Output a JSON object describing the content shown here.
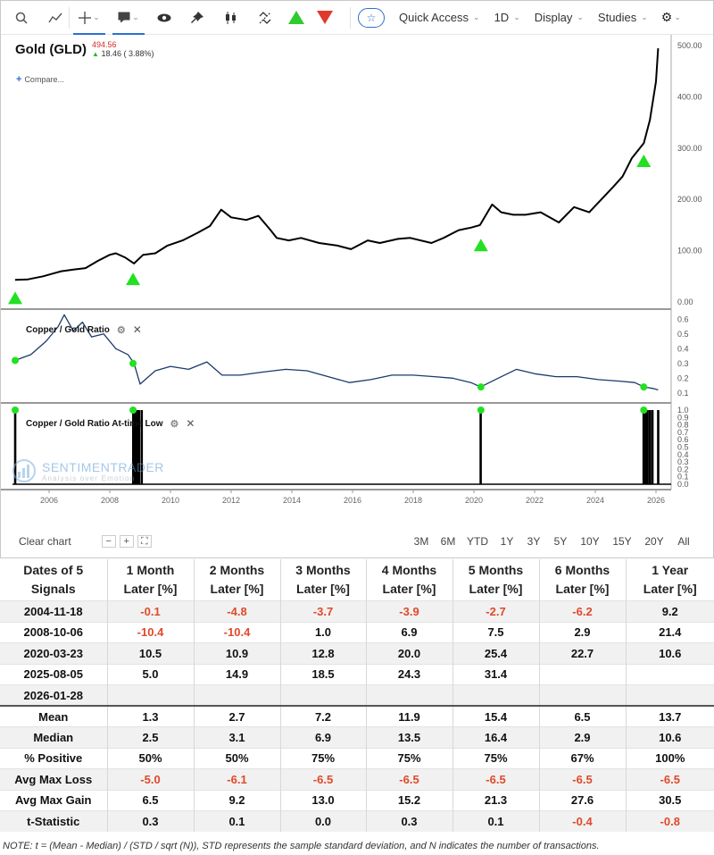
{
  "toolbar": {
    "icons": [
      "search-icon",
      "draw-line-icon",
      "crosshair-icon",
      "comment-icon",
      "eye-icon",
      "pin-icon",
      "candlestick-icon",
      "compare-arrows-icon",
      "up-triangle-icon",
      "down-triangle-icon",
      "star-icon",
      "gear-icon"
    ],
    "quick_access": "Quick Access",
    "interval": "1D",
    "display": "Display",
    "studies": "Studies"
  },
  "header": {
    "title": "Gold (GLD)",
    "price": "494.56",
    "change": "18.46 ( 3.88%)",
    "compare": "Compare..."
  },
  "panels": {
    "ratio_label": "Copper / Gold Ratio",
    "low_label": "Copper / Gold Ratio At-time Low"
  },
  "watermark": {
    "line1": "SENTIMENTRADER",
    "line2": "Analysis over Emotion"
  },
  "bottom_bar": {
    "clear": "Clear chart",
    "zoom_out": "−",
    "zoom_in": "+",
    "zoom_fit": "⛶",
    "ranges": [
      "3M",
      "6M",
      "YTD",
      "1Y",
      "3Y",
      "5Y",
      "10Y",
      "15Y",
      "20Y",
      "All"
    ]
  },
  "colors": {
    "price_line": "#000000",
    "ratio_line": "#1a3a6b",
    "signal_marker": "#22e022",
    "negative": "#e0492a",
    "accent": "#2c6fd6"
  },
  "chart_data": [
    {
      "type": "line",
      "title": "Gold (GLD)",
      "x_ticks": [
        "2006",
        "2008",
        "2010",
        "2012",
        "2014",
        "2016",
        "2018",
        "2020",
        "2022",
        "2024",
        "2026"
      ],
      "y_ticks": [
        "0.00",
        "100.00",
        "200.00",
        "300.00",
        "400.00",
        "500.00"
      ],
      "ylim": [
        0,
        520
      ],
      "series": [
        {
          "name": "Gold (GLD)",
          "x": [
            2004.88,
            2005.3,
            2005.8,
            2006.1,
            2006.4,
            2006.8,
            2007.2,
            2007.6,
            2008.0,
            2008.2,
            2008.5,
            2008.8,
            2009.1,
            2009.5,
            2009.9,
            2010.4,
            2010.9,
            2011.3,
            2011.67,
            2012.0,
            2012.5,
            2012.9,
            2013.3,
            2013.5,
            2013.9,
            2014.3,
            2014.9,
            2015.5,
            2015.95,
            2016.5,
            2016.9,
            2017.5,
            2017.9,
            2018.6,
            2019.0,
            2019.5,
            2019.9,
            2020.2,
            2020.6,
            2020.9,
            2021.3,
            2021.7,
            2022.2,
            2022.8,
            2023.3,
            2023.8,
            2024.2,
            2024.6,
            2024.9,
            2025.2,
            2025.6,
            2025.8,
            2026.0,
            2026.07
          ],
          "y": [
            43,
            44,
            50,
            55,
            60,
            63,
            66,
            80,
            92,
            95,
            87,
            75,
            92,
            95,
            110,
            120,
            135,
            148,
            180,
            165,
            160,
            168,
            140,
            125,
            120,
            125,
            115,
            110,
            103,
            120,
            115,
            123,
            125,
            115,
            125,
            140,
            145,
            150,
            190,
            175,
            170,
            170,
            175,
            155,
            185,
            175,
            200,
            225,
            245,
            280,
            310,
            355,
            430,
            494.56
          ]
        }
      ],
      "signals": [
        {
          "date": "2004-11-18",
          "value": 43
        },
        {
          "date": "2008-10-06",
          "value": 80
        },
        {
          "date": "2020-03-23",
          "value": 146
        },
        {
          "date": "2025-08-05",
          "value": 310
        }
      ]
    },
    {
      "type": "line",
      "title": "Copper / Gold Ratio",
      "y_ticks": [
        "0.1",
        "0.2",
        "0.3",
        "0.4",
        "0.5",
        "0.6"
      ],
      "ylim": [
        0.05,
        0.65
      ],
      "series": [
        {
          "name": "Copper / Gold Ratio",
          "x": [
            2004.88,
            2005.4,
            2005.9,
            2006.3,
            2006.5,
            2006.8,
            2007.1,
            2007.4,
            2007.8,
            2008.2,
            2008.6,
            2008.8,
            2009.0,
            2009.5,
            2010.0,
            2010.6,
            2011.2,
            2011.7,
            2012.3,
            2013.0,
            2013.8,
            2014.5,
            2015.2,
            2015.9,
            2016.6,
            2017.3,
            2018.0,
            2018.7,
            2019.3,
            2019.9,
            2020.22,
            2020.8,
            2021.4,
            2022.0,
            2022.7,
            2023.4,
            2024.1,
            2024.8,
            2025.3,
            2025.6,
            2025.9,
            2026.07
          ],
          "y": [
            0.32,
            0.36,
            0.45,
            0.55,
            0.63,
            0.52,
            0.58,
            0.48,
            0.5,
            0.4,
            0.36,
            0.3,
            0.16,
            0.25,
            0.28,
            0.26,
            0.31,
            0.22,
            0.22,
            0.24,
            0.26,
            0.25,
            0.21,
            0.17,
            0.19,
            0.22,
            0.22,
            0.21,
            0.2,
            0.17,
            0.14,
            0.2,
            0.26,
            0.23,
            0.21,
            0.21,
            0.19,
            0.18,
            0.17,
            0.14,
            0.13,
            0.12
          ]
        }
      ],
      "signals": [
        {
          "date": "2004-11-18",
          "value": 0.32
        },
        {
          "date": "2008-10-06",
          "value": 0.3
        },
        {
          "date": "2020-03-23",
          "value": 0.14
        },
        {
          "date": "2025-08-05",
          "value": 0.14
        }
      ]
    },
    {
      "type": "bar",
      "title": "Copper / Gold Ratio At-time Low",
      "y_ticks": [
        "0.0",
        "0.1",
        "0.2",
        "0.3",
        "0.4",
        "0.5",
        "0.6",
        "0.7",
        "0.8",
        "0.9",
        "1.0"
      ],
      "ylim": [
        0,
        1
      ],
      "spikes": [
        2004.88,
        2008.77,
        2008.84,
        2008.9,
        2008.96,
        2009.05,
        2020.22,
        2025.59,
        2025.66,
        2025.72,
        2025.8,
        2025.88,
        2026.07
      ],
      "values": [
        1,
        1,
        1,
        1,
        1,
        1,
        1,
        1,
        1,
        1,
        1,
        1,
        1
      ]
    },
    {
      "type": "table",
      "header_row1": [
        "Dates of 5",
        "1 Month",
        "2 Months",
        "3 Months",
        "4 Months",
        "5 Months",
        "6 Months",
        "1 Year"
      ],
      "header_row2": [
        "Signals",
        "Later [%]",
        "Later [%]",
        "Later [%]",
        "Later [%]",
        "Later [%]",
        "Later [%]",
        "Later [%]"
      ],
      "rows": [
        [
          "2004-11-18",
          "-0.1",
          "-4.8",
          "-3.7",
          "-3.9",
          "-2.7",
          "-6.2",
          "9.2"
        ],
        [
          "2008-10-06",
          "-10.4",
          "-10.4",
          "1.0",
          "6.9",
          "7.5",
          "2.9",
          "21.4"
        ],
        [
          "2020-03-23",
          "10.5",
          "10.9",
          "12.8",
          "20.0",
          "25.4",
          "22.7",
          "10.6"
        ],
        [
          "2025-08-05",
          "5.0",
          "14.9",
          "18.5",
          "24.3",
          "31.4",
          "",
          ""
        ],
        [
          "2026-01-28",
          "",
          "",
          "",
          "",
          "",
          "",
          ""
        ]
      ],
      "summary": [
        [
          "Mean",
          "1.3",
          "2.7",
          "7.2",
          "11.9",
          "15.4",
          "6.5",
          "13.7"
        ],
        [
          "Median",
          "2.5",
          "3.1",
          "6.9",
          "13.5",
          "16.4",
          "2.9",
          "10.6"
        ],
        [
          "% Positive",
          "50%",
          "50%",
          "75%",
          "75%",
          "75%",
          "67%",
          "100%"
        ],
        [
          "Avg Max Loss",
          "-5.0",
          "-6.1",
          "-6.5",
          "-6.5",
          "-6.5",
          "-6.5",
          "-6.5"
        ],
        [
          "Avg Max Gain",
          "6.5",
          "9.2",
          "13.0",
          "15.2",
          "21.3",
          "27.6",
          "30.5"
        ],
        [
          "t-Statistic",
          "0.3",
          "0.1",
          "0.0",
          "0.3",
          "0.1",
          "-0.4",
          "-0.8"
        ]
      ]
    }
  ],
  "note": "NOTE: t = (Mean - Median) / (STD / sqrt (N)), STD represents the sample standard deviation, and N indicates the number of transactions."
}
